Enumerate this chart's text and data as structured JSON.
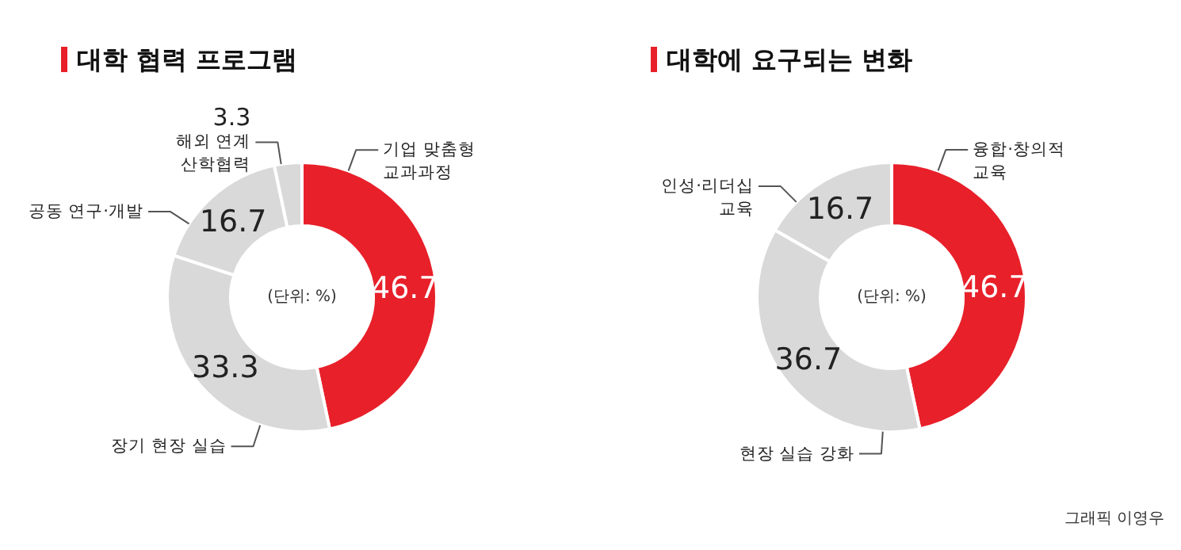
{
  "chart_data": [
    {
      "type": "donut",
      "title": "대학 협력 프로그램",
      "categories": [
        "기업 맞춤형 교과과정",
        "장기 현장 실습",
        "공동 연구·개발",
        "해외 연계 산학협력"
      ],
      "values": [
        46.7,
        33.3,
        16.7,
        3.3
      ],
      "colors": [
        "#e8202a",
        "#d9d9d9",
        "#d9d9d9",
        "#d9d9d9"
      ],
      "data_labels": true,
      "annotations": [
        "(단위: %)"
      ]
    },
    {
      "type": "donut",
      "title": "대학에 요구되는 변화",
      "categories": [
        "융합·창의적 교육",
        "현장 실습 강화",
        "인성·리더십 교육"
      ],
      "values": [
        46.7,
        36.7,
        16.7
      ],
      "colors": [
        "#e8202a",
        "#d9d9d9",
        "#d9d9d9"
      ],
      "data_labels": true,
      "annotations": [
        "(단위: %)",
        "그래픽 이영우"
      ]
    }
  ]
}
